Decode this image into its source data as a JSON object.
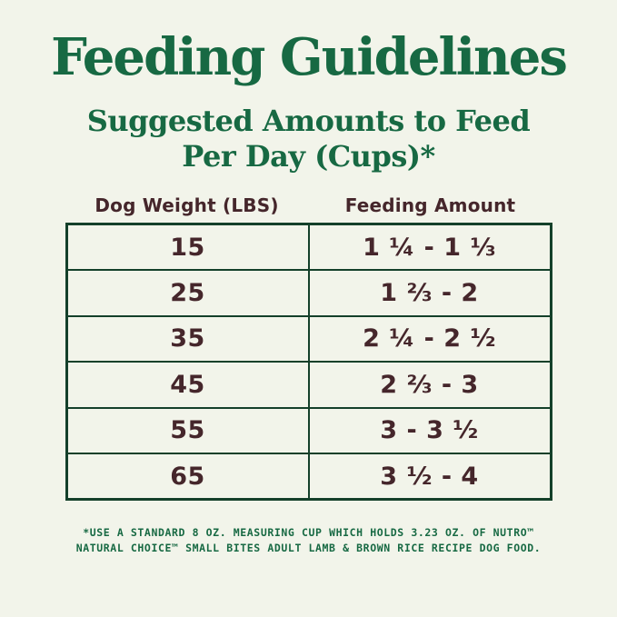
{
  "page": {
    "title": "Feeding Guidelines",
    "subtitle_line1": "Suggested Amounts to Feed",
    "subtitle_line2": "Per Day (Cups)*"
  },
  "chart_data": {
    "type": "table",
    "title": "Feeding Guidelines",
    "subtitle": "Suggested Amounts to Feed Per Day (Cups)*",
    "columns": [
      "Dog Weight (LBS)",
      "Feeding Amount"
    ],
    "rows": [
      [
        "15",
        "1 ¼ - 1 ⅓"
      ],
      [
        "25",
        "1 ⅔ - 2"
      ],
      [
        "35",
        "2 ¼ - 2 ½"
      ],
      [
        "45",
        "2 ⅔ - 3"
      ],
      [
        "55",
        "3 - 3 ½"
      ],
      [
        "65",
        "3 ½ - 4"
      ]
    ],
    "units": "cups per day",
    "footnote": "*USE A STANDARD 8 OZ. MEASURING CUP WHICH HOLDS 3.23 OZ. OF NUTRO™ NATURAL CHOICE™ SMALL BITES ADULT LAMB & BROWN RICE RECIPE DOG FOOD."
  },
  "footnote": {
    "line1": "*USE A STANDARD 8 OZ. MEASURING CUP WHICH HOLDS 3.23 OZ. OF NUTRO™",
    "line2": "NATURAL CHOICE™ SMALL BITES ADULT LAMB & BROWN RICE RECIPE DOG FOOD."
  },
  "colors": {
    "background": "#f2f4ea",
    "heading_green": "#176943",
    "table_border_green": "#14402a",
    "text_brown": "#45262b"
  }
}
